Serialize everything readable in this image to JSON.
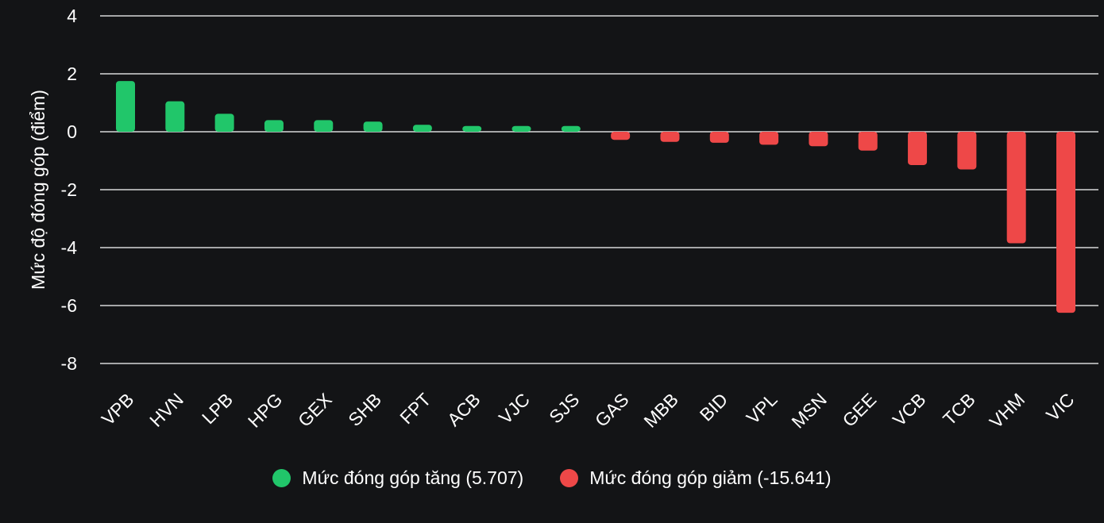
{
  "chart_data": {
    "type": "bar",
    "ylabel": "Mức độ đóng góp (điểm)",
    "ylim": [
      -8,
      4
    ],
    "yticks": [
      4,
      2,
      0,
      -2,
      -4,
      -6,
      -8
    ],
    "grid": true,
    "legend_position": "bottom",
    "categories": [
      "VPB",
      "HVN",
      "LPB",
      "HPG",
      "GEX",
      "SHB",
      "FPT",
      "ACB",
      "VJC",
      "SJS",
      "GAS",
      "MBB",
      "BID",
      "VPL",
      "MSN",
      "GEE",
      "VCB",
      "TCB",
      "VHM",
      "VIC"
    ],
    "values": [
      1.75,
      1.05,
      0.62,
      0.4,
      0.4,
      0.35,
      0.24,
      0.2,
      0.2,
      0.2,
      -0.28,
      -0.35,
      -0.38,
      -0.45,
      -0.5,
      -0.65,
      -1.15,
      -1.3,
      -3.85,
      -6.25
    ],
    "series": [
      {
        "name": "Mức đóng góp tăng (5.707)",
        "color": "#21c66a"
      },
      {
        "name": "Mức đóng góp giảm (-15.641)",
        "color": "#ee4848"
      }
    ]
  },
  "colors": {
    "background": "#131416",
    "positive": "#21c66a",
    "negative": "#ee4848",
    "grid": "#ffffff",
    "text": "#ffffff"
  }
}
